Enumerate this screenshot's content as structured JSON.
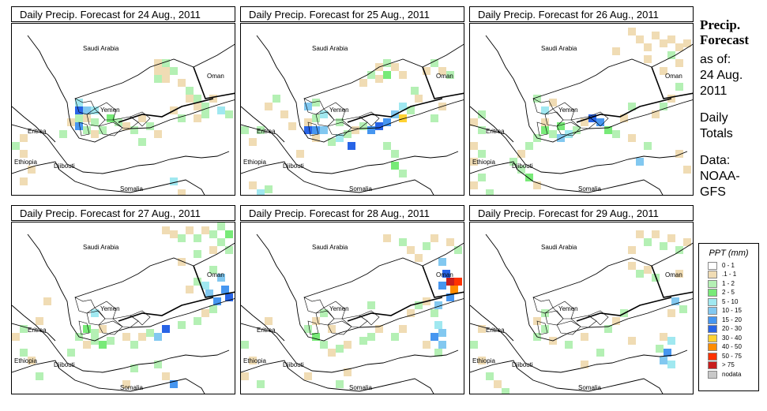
{
  "panels": [
    {
      "title": "Daily Precip. Forecast for  24 Aug., 2011",
      "date": "24 Aug., 2011"
    },
    {
      "title": "Daily Precip. Forecast for  25 Aug., 2011",
      "date": "25 Aug., 2011"
    },
    {
      "title": "Daily Precip. Forecast for  26 Aug., 2011",
      "date": "26 Aug., 2011"
    },
    {
      "title": "Daily Precip. Forecast for  27 Aug., 2011",
      "date": "27 Aug., 2011"
    },
    {
      "title": "Daily Precip. Forecast for  28 Aug., 2011",
      "date": "28 Aug., 2011"
    },
    {
      "title": "Daily Precip. Forecast for  29 Aug., 2011",
      "date": "29 Aug., 2011"
    }
  ],
  "place_labels": {
    "saudi": "Saudi Arabia",
    "oman": "Oman",
    "yemen": "Yemen",
    "eritrea": "Eritrea",
    "ethiopia": "Ethiopia",
    "djibouti": "Djibouti",
    "somalia": "Somalia"
  },
  "side": {
    "heading_line1": "Precip.",
    "heading_line2": "Forecast",
    "asof_1": "as of:",
    "asof_2": "24 Aug.",
    "asof_3": "2011",
    "totals_1": "Daily",
    "totals_2": "Totals",
    "data_1": "Data:",
    "data_2": "NOAA-",
    "data_3": "GFS"
  },
  "legend": {
    "title": "PPT (mm)",
    "items": [
      {
        "label": "0 - 1",
        "color": "#ffffff"
      },
      {
        "label": ".1 - 1",
        "color": "#f0dcb4"
      },
      {
        "label": "1 - 2",
        "color": "#b4f0b4"
      },
      {
        "label": "2 - 5",
        "color": "#78ea78"
      },
      {
        "label": "5 - 10",
        "color": "#a0e8f0"
      },
      {
        "label": "10 - 15",
        "color": "#82c8f0"
      },
      {
        "label": "15 - 20",
        "color": "#4696f0"
      },
      {
        "label": "20 - 30",
        "color": "#2864e6"
      },
      {
        "label": "30 - 40",
        "color": "#ffd232"
      },
      {
        "label": "40 - 50",
        "color": "#ff8c00"
      },
      {
        "label": "50 - 75",
        "color": "#ff3200"
      },
      {
        "label": "> 75",
        "color": "#c81e1e"
      },
      {
        "label": "nodata",
        "color": "#c8c8c8"
      }
    ]
  }
}
